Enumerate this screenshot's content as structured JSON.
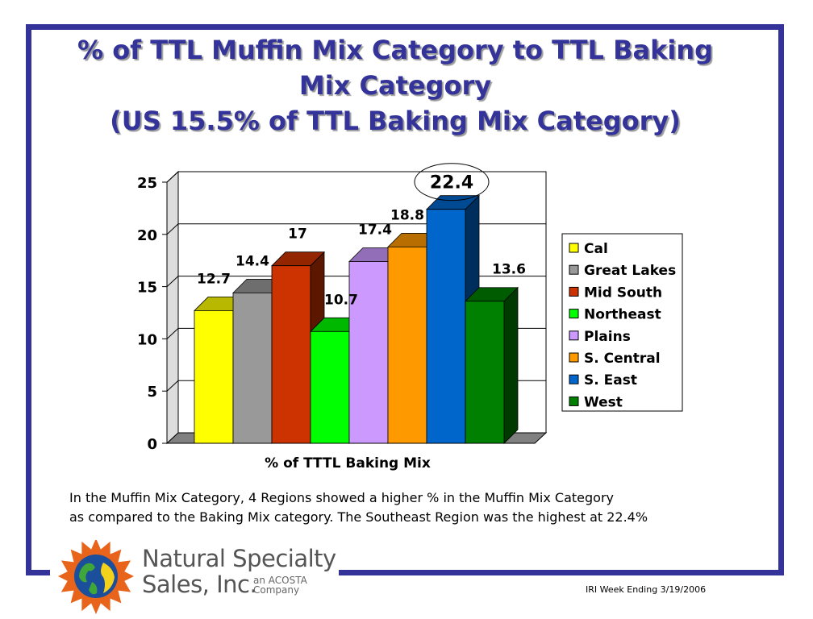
{
  "title": {
    "line1": "% of TTL Muffin Mix Category to TTL  Baking",
    "line2": "Mix Category",
    "line3": "(US 15.5% of TTL Baking Mix Category)"
  },
  "chart_data": {
    "type": "bar",
    "xlabel": "% of TTTL Baking Mix",
    "ylabel": "",
    "ylim": [
      0,
      25
    ],
    "yticks": [
      0,
      5,
      10,
      15,
      20,
      25
    ],
    "grid": true,
    "legend_position": "right",
    "three_d": true,
    "highlighted": "S. East",
    "series": [
      {
        "name": "Cal",
        "value": 12.7,
        "label": "12.7",
        "color": "#FFFF00"
      },
      {
        "name": "Great Lakes",
        "value": 14.4,
        "label": "14.4",
        "color": "#999999"
      },
      {
        "name": "Mid South",
        "value": 17,
        "label": "17",
        "color": "#CC3300"
      },
      {
        "name": "Northeast",
        "value": 10.7,
        "label": "10.7",
        "color": "#00FF00"
      },
      {
        "name": "Plains",
        "value": 17.4,
        "label": "17.4",
        "color": "#CC99FF"
      },
      {
        "name": "S. Central",
        "value": 18.8,
        "label": "18.8",
        "color": "#FF9900"
      },
      {
        "name": "S. East",
        "value": 22.4,
        "label": "22.4",
        "color": "#0066CC"
      },
      {
        "name": "West",
        "value": 13.6,
        "label": "13.6",
        "color": "#008000"
      }
    ]
  },
  "note": {
    "line1": "In the Muffin Mix Category, 4 Regions showed a higher % in the Muffin Mix Category",
    "line2": "as compared to the Baking Mix category. The Southeast Region was the highest at 22.4%"
  },
  "logo": {
    "line1": "Natural Specialty",
    "line2": "Sales, Inc.",
    "tagline1": "an ACOSTA",
    "tagline2": "Company"
  },
  "footer": "IRI Week Ending  3/19/2006"
}
